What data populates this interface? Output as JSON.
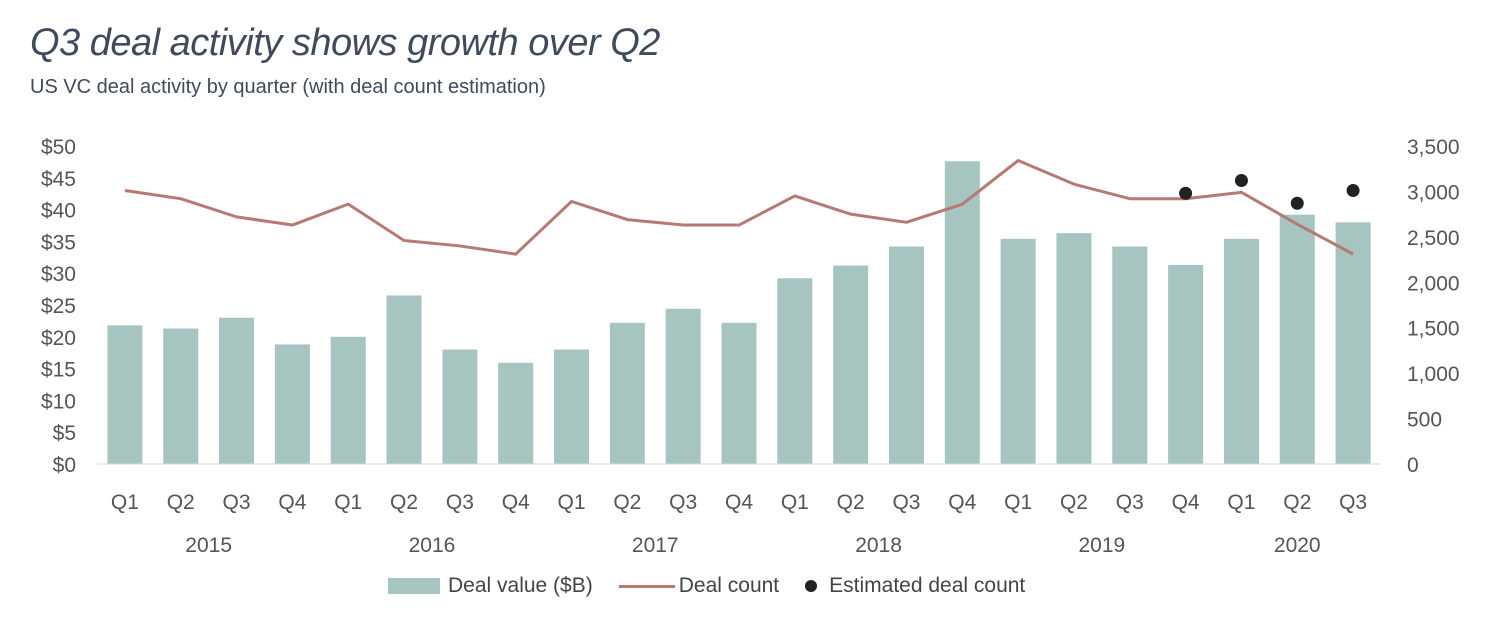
{
  "header": {
    "title": "Q3 deal activity shows growth over Q2",
    "subtitle": "US VC deal activity by quarter (with deal count estimation)"
  },
  "legend": {
    "bar_label": "Deal value ($B)",
    "line_label": "Deal count",
    "dot_label": "Estimated deal count"
  },
  "colors": {
    "bar": "#a6c4c0",
    "line": "#b57a72",
    "dot": "#222222",
    "axis_text": "#555555"
  },
  "chart_data": {
    "type": "bar",
    "categories": [
      "Q1",
      "Q2",
      "Q3",
      "Q4",
      "Q1",
      "Q2",
      "Q3",
      "Q4",
      "Q1",
      "Q2",
      "Q3",
      "Q4",
      "Q1",
      "Q2",
      "Q3",
      "Q4",
      "Q1",
      "Q2",
      "Q3",
      "Q4",
      "Q1",
      "Q2",
      "Q3"
    ],
    "years": [
      {
        "label": "2015",
        "start": 0,
        "end": 3
      },
      {
        "label": "2016",
        "start": 4,
        "end": 7
      },
      {
        "label": "2017",
        "start": 8,
        "end": 11
      },
      {
        "label": "2018",
        "start": 12,
        "end": 15
      },
      {
        "label": "2019",
        "start": 16,
        "end": 19
      },
      {
        "label": "2020",
        "start": 20,
        "end": 22
      }
    ],
    "series": [
      {
        "name": "Deal value ($B)",
        "type": "bar",
        "axis": "left",
        "values": [
          21.8,
          21.3,
          23.0,
          18.8,
          20.0,
          26.5,
          18.0,
          15.9,
          18.0,
          22.2,
          24.4,
          22.2,
          29.2,
          31.2,
          34.2,
          47.6,
          35.4,
          36.3,
          34.2,
          31.3,
          35.4,
          39.2,
          38.0
        ]
      },
      {
        "name": "Deal count",
        "type": "line",
        "axis": "right",
        "values": [
          3010,
          2920,
          2720,
          2630,
          2860,
          2460,
          2400,
          2310,
          2890,
          2690,
          2630,
          2630,
          2950,
          2750,
          2660,
          2860,
          3340,
          3080,
          2920,
          2920,
          2990,
          2640,
          2310
        ]
      },
      {
        "name": "Estimated deal count",
        "type": "scatter",
        "axis": "right",
        "points": [
          {
            "i": 19,
            "value": 2980
          },
          {
            "i": 20,
            "value": 3120
          },
          {
            "i": 21,
            "value": 2870
          },
          {
            "i": 22,
            "value": 3010
          }
        ]
      }
    ],
    "y_left": {
      "min": 0,
      "max": 50,
      "ticks": [
        "$0",
        "$5",
        "$10",
        "$15",
        "$20",
        "$25",
        "$30",
        "$35",
        "$40",
        "$45",
        "$50"
      ]
    },
    "y_right": {
      "min": 0,
      "max": 3500,
      "ticks": [
        "0",
        "500",
        "1,000",
        "1,500",
        "2,000",
        "2,500",
        "3,000",
        "3,500"
      ]
    },
    "legend_position": "bottom",
    "grid": false
  }
}
